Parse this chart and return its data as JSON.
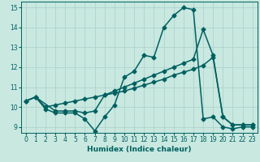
{
  "xlabel": "Humidex (Indice chaleur)",
  "xlim": [
    -0.5,
    23.5
  ],
  "ylim": [
    8.7,
    15.3
  ],
  "yticks": [
    9,
    10,
    11,
    12,
    13,
    14,
    15
  ],
  "xticks": [
    0,
    1,
    2,
    3,
    4,
    5,
    6,
    7,
    8,
    9,
    10,
    11,
    12,
    13,
    14,
    15,
    16,
    17,
    18,
    19,
    20,
    21,
    22,
    23
  ],
  "bg_color": "#c8e8e0",
  "grid_color": "#aed4cc",
  "line_color": "#006060",
  "line1_x": [
    0,
    1,
    2,
    3,
    4,
    5,
    6,
    7,
    8,
    9,
    10,
    11,
    12,
    13,
    14,
    15,
    16,
    17,
    18,
    19,
    20,
    21,
    22,
    23
  ],
  "line1_y": [
    10.3,
    10.5,
    9.9,
    9.7,
    9.7,
    9.7,
    9.4,
    8.8,
    9.5,
    10.1,
    11.5,
    11.8,
    12.6,
    12.5,
    14.0,
    14.6,
    15.0,
    14.9,
    9.4,
    9.5,
    9.0,
    8.9,
    9.0,
    9.0
  ],
  "line2_x": [
    0,
    1,
    3,
    4,
    5,
    6,
    7,
    8,
    9,
    10,
    11,
    12,
    13,
    14,
    15,
    16,
    17,
    18,
    19,
    20,
    21,
    22,
    23
  ],
  "line2_y": [
    10.3,
    10.5,
    9.8,
    9.8,
    9.8,
    9.7,
    9.8,
    10.6,
    10.8,
    11.0,
    11.2,
    11.4,
    11.6,
    11.8,
    12.0,
    12.2,
    12.4,
    13.9,
    12.6,
    9.5,
    9.1,
    9.1,
    9.1
  ],
  "line3_x": [
    0,
    1,
    2,
    3,
    4,
    5,
    6,
    7,
    8,
    9,
    10,
    11,
    12,
    13,
    14,
    15,
    16,
    17,
    18,
    19,
    20,
    21,
    22,
    23
  ],
  "line3_y": [
    10.3,
    10.5,
    10.0,
    10.1,
    10.2,
    10.3,
    10.4,
    10.5,
    10.6,
    10.7,
    10.8,
    10.95,
    11.1,
    11.25,
    11.4,
    11.6,
    11.75,
    11.9,
    12.1,
    12.5,
    9.5,
    9.1,
    9.1,
    9.1
  ],
  "marker": "D",
  "markersize": 2.5,
  "linewidth": 1.1,
  "tick_fontsize": 5.5,
  "xlabel_fontsize": 6.5
}
